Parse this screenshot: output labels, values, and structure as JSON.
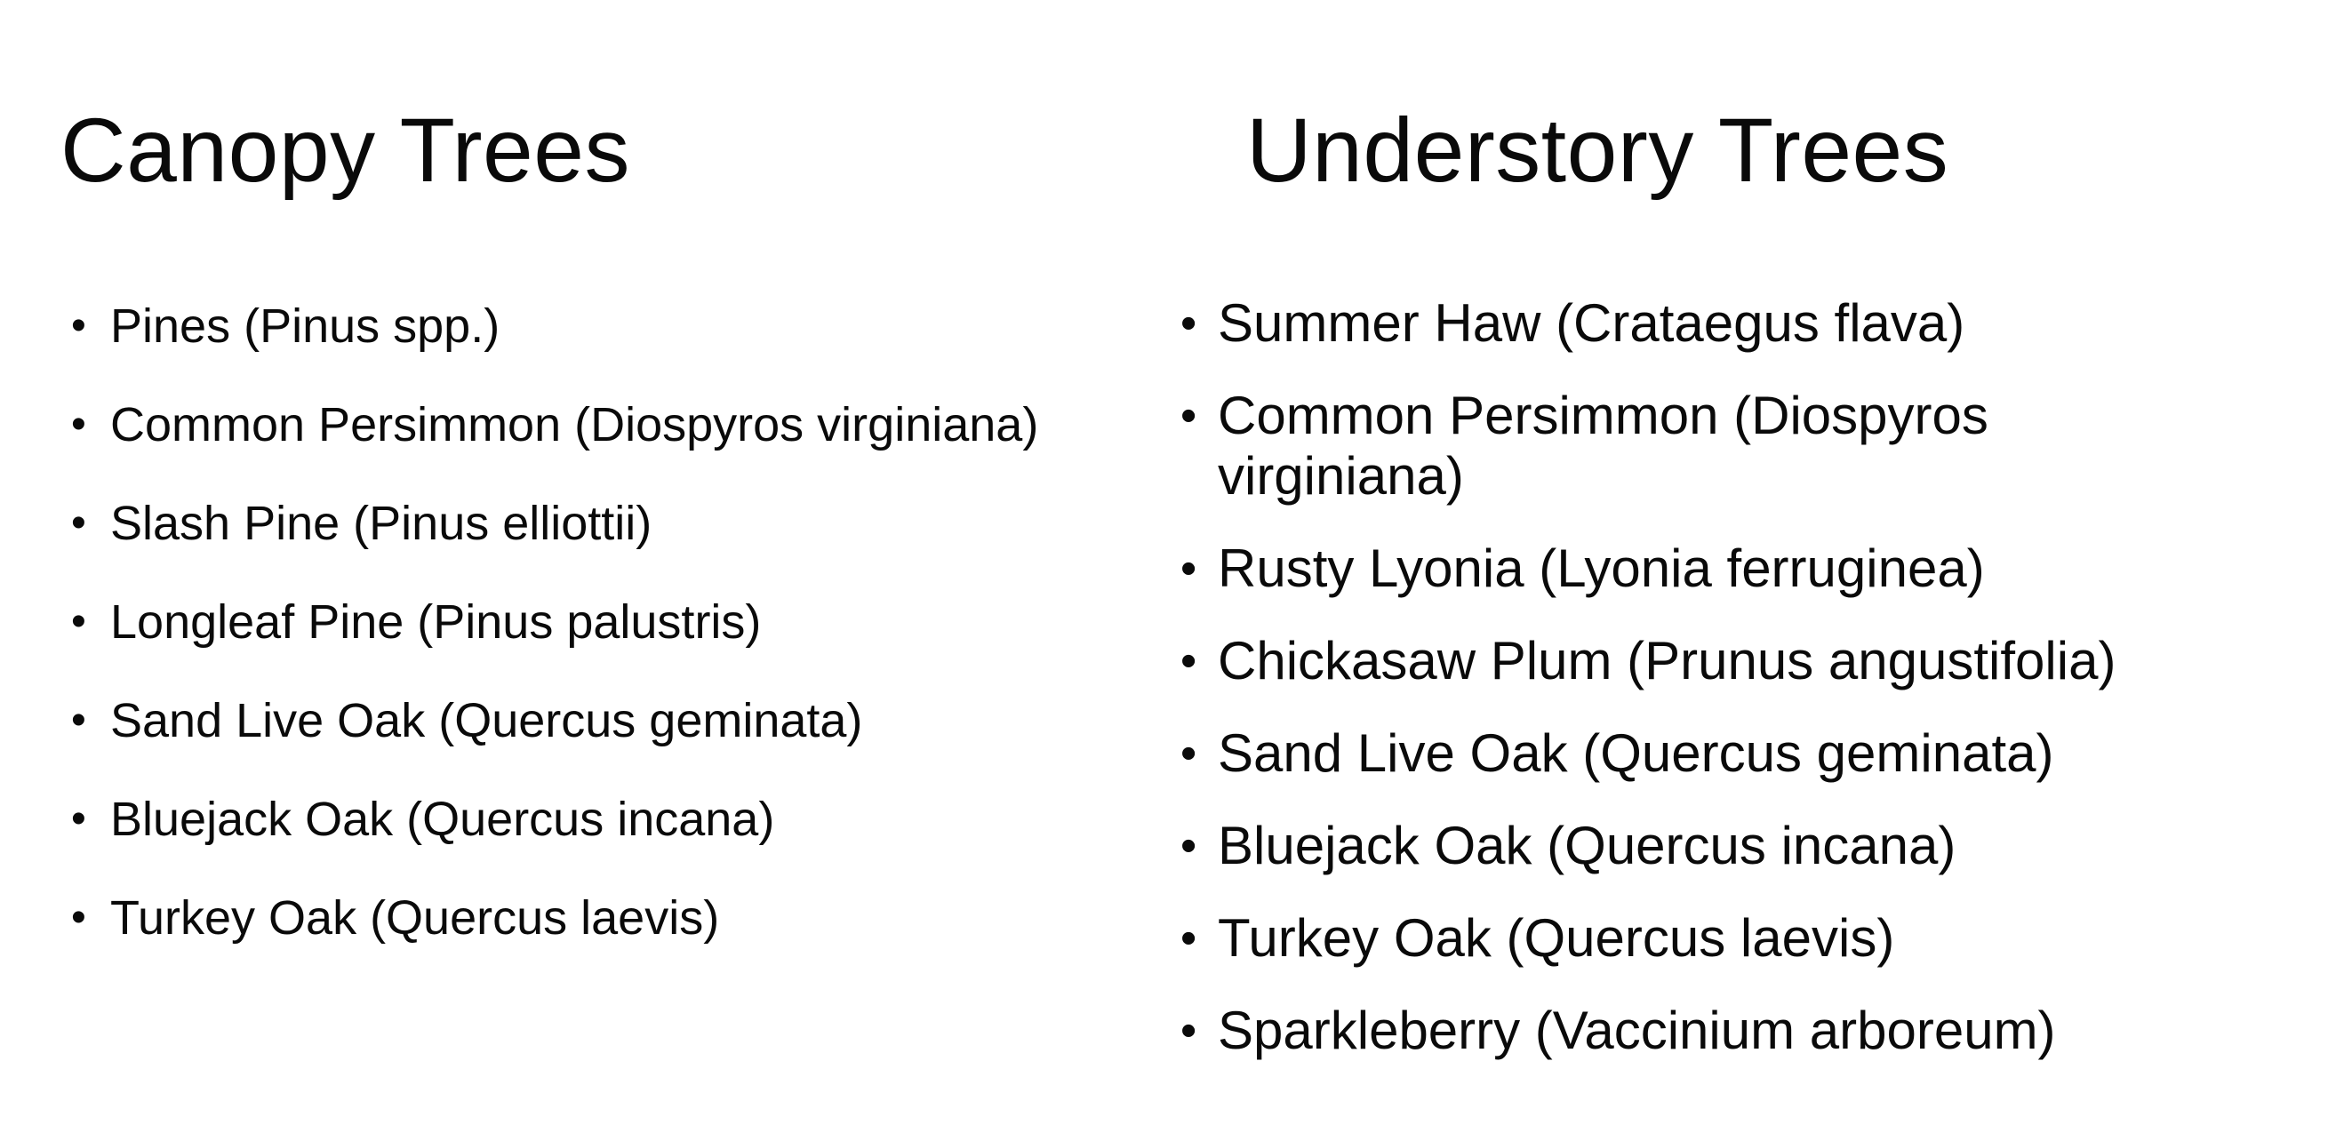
{
  "canopy": {
    "title": "Canopy Trees",
    "items": [
      "Pines (Pinus spp.)",
      "Common Persimmon (Diospyros virginiana)",
      "Slash Pine (Pinus elliottii)",
      "Longleaf Pine (Pinus palustris)",
      "Sand Live Oak (Quercus geminata)",
      "Bluejack Oak (Quercus incana)",
      "Turkey Oak (Quercus laevis)"
    ]
  },
  "understory": {
    "title": "Understory Trees",
    "items": [
      "Summer Haw (Crataegus flava)",
      "Common Persimmon (Diospyros virginiana)",
      "Rusty Lyonia (Lyonia ferruginea)",
      "Chickasaw Plum (Prunus angustifolia)",
      "Sand Live Oak (Quercus geminata)",
      "Bluejack Oak (Quercus incana)",
      "Turkey Oak (Quercus laevis)",
      "Sparkleberry (Vaccinium arboreum)"
    ]
  },
  "bullet_glyph": "•",
  "colors": {
    "background": "#ffffff",
    "text": "#0a0a0a"
  }
}
